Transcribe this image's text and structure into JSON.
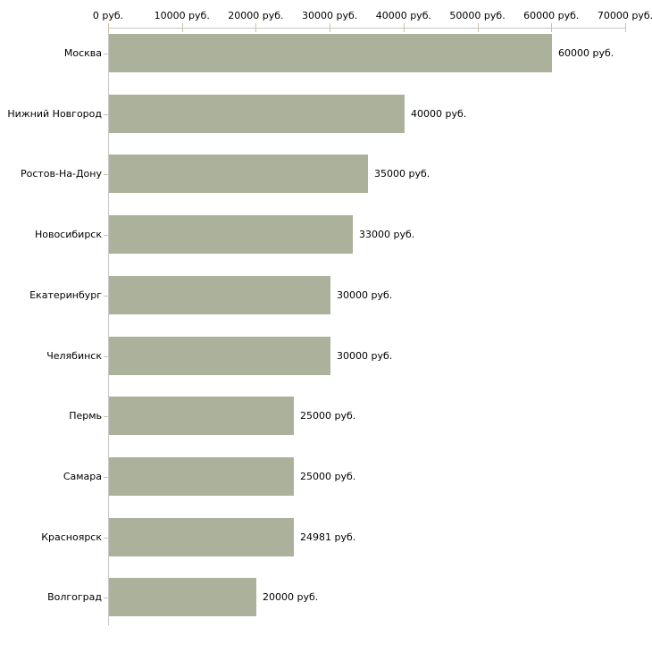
{
  "page": {
    "background": "#ffffff"
  },
  "chart_data": {
    "type": "bar",
    "orientation": "horizontal",
    "title": "",
    "categories": [
      "Москва",
      "Нижний Новгород",
      "Ростов-На-Дону",
      "Новосибирск",
      "Екатеринбург",
      "Челябинск",
      "Пермь",
      "Самара",
      "Красноярск",
      "Волгоград"
    ],
    "values": [
      60000,
      40000,
      35000,
      33000,
      30000,
      30000,
      25000,
      25000,
      24981,
      20000
    ],
    "value_labels": [
      "60000 руб.",
      "40000 руб.",
      "35000 руб.",
      "33000 руб.",
      "30000 руб.",
      "30000 руб.",
      "25000 руб.",
      "25000 руб.",
      "24981 руб.",
      "20000 руб."
    ],
    "unit": "руб.",
    "x_ticks": [
      0,
      10000,
      20000,
      30000,
      40000,
      50000,
      60000,
      70000
    ],
    "x_tick_labels": [
      "0 руб.",
      "10000 руб.",
      "20000 руб.",
      "30000 руб.",
      "40000 руб.",
      "50000 руб.",
      "60000 руб.",
      "70000 руб."
    ],
    "xlim": [
      0,
      70000
    ],
    "xlabel": "",
    "ylabel": "",
    "grid": false,
    "legend": false,
    "axis_position": "top",
    "colors": {
      "bar": "#abb19a",
      "axis_line": "#c9c9c9",
      "tick_mark": "#cbc49e",
      "text": "#000000",
      "background": "#ffffff"
    }
  }
}
